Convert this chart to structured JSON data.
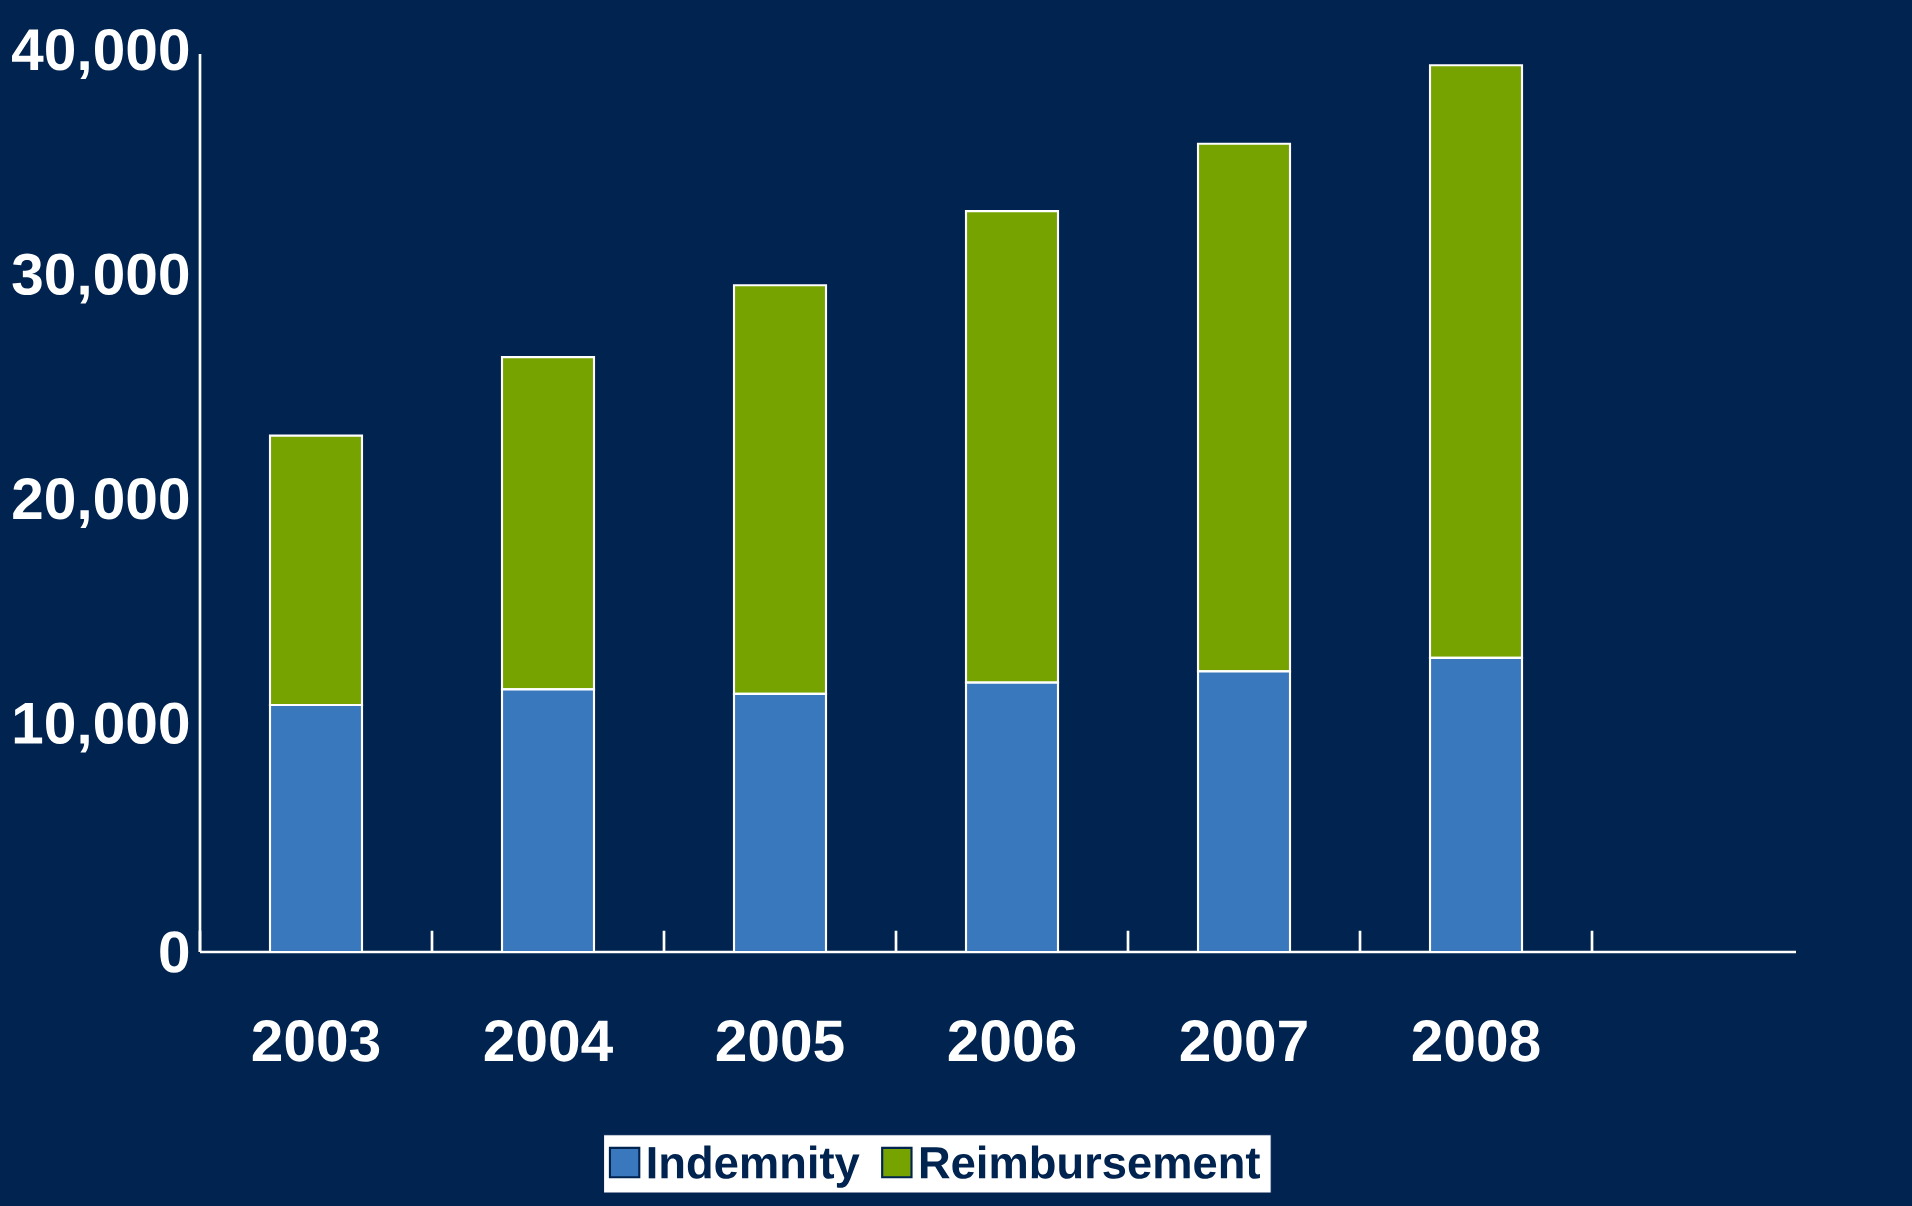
{
  "chart_data": {
    "type": "bar",
    "stacked": true,
    "categories": [
      "2003",
      "2004",
      "2005",
      "2006",
      "2007",
      "2008"
    ],
    "series": [
      {
        "name": "Indemnity",
        "color": "#3a78bd",
        "values": [
          11000,
          11700,
          11500,
          12000,
          12500,
          13100
        ]
      },
      {
        "name": "Reimbursement",
        "color": "#76a300",
        "values": [
          12000,
          14800,
          18200,
          21000,
          23500,
          26400
        ]
      }
    ],
    "ylim": [
      0,
      40000
    ],
    "yticks": [
      {
        "value": 0,
        "label": "0"
      },
      {
        "value": 10000,
        "label": "10,000"
      },
      {
        "value": 20000,
        "label": "20,000"
      },
      {
        "value": 30000,
        "label": "30,000"
      },
      {
        "value": 40000,
        "label": "40,000"
      }
    ],
    "legend": "bottom"
  }
}
